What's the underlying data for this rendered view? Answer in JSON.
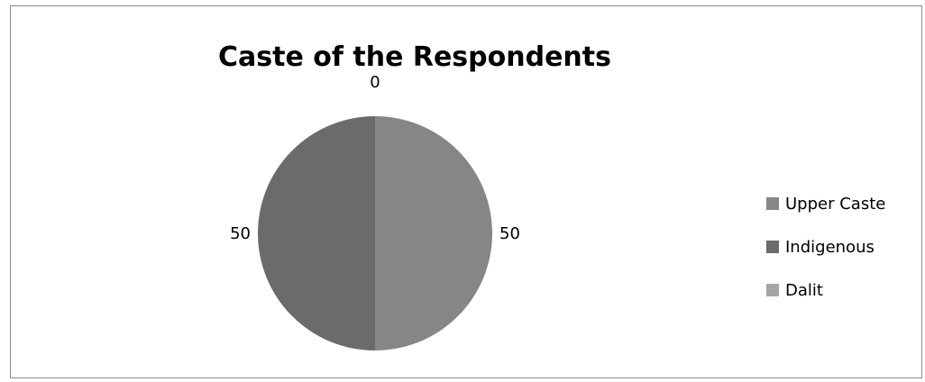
{
  "chart_data": {
    "type": "pie",
    "title": "Caste of the Respondents",
    "categories": [
      "Upper Caste",
      "Indigenous",
      "Dalit"
    ],
    "values": [
      50,
      50,
      0
    ],
    "data_labels": [
      "50",
      "50",
      "0"
    ],
    "colors": [
      "#868686",
      "#6b6b6b",
      "#a5a5a5"
    ],
    "legend_position": "right",
    "start_angle_deg": 0,
    "direction": "clockwise"
  }
}
